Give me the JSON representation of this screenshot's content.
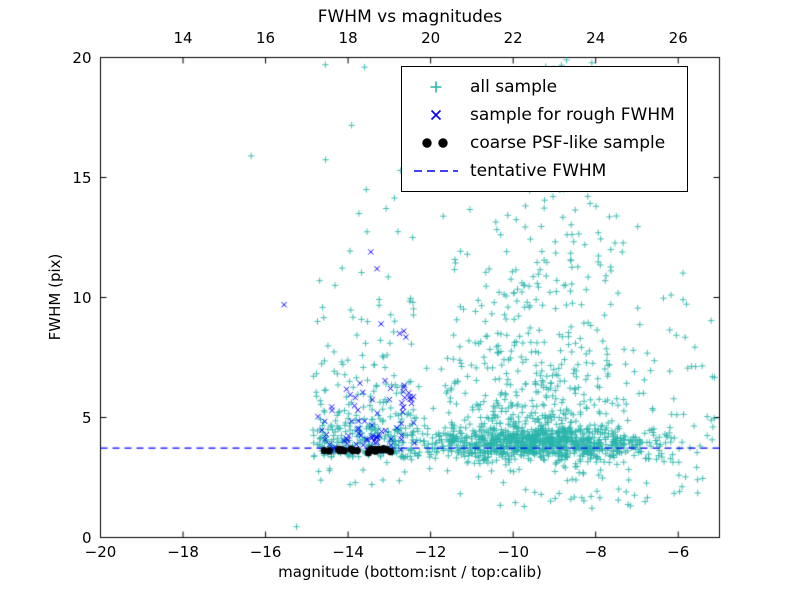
{
  "chart_data": {
    "type": "scatter",
    "title": "FWHM vs magnitudes",
    "xlabel": "magnitude (bottom:isnt / top:calib)",
    "ylabel": "FWHM (pix)",
    "xlim": [
      -20,
      -5
    ],
    "ylim": [
      0,
      20
    ],
    "top_xlim": [
      12,
      27
    ],
    "x_ticks": [
      -20,
      -18,
      -16,
      -14,
      -12,
      -10,
      -8,
      -6
    ],
    "x_tick_labels": [
      "−20",
      "−18",
      "−16",
      "−14",
      "−12",
      "−10",
      "−8",
      "−6"
    ],
    "y_ticks": [
      0,
      5,
      10,
      15,
      20
    ],
    "y_tick_labels": [
      "0",
      "5",
      "10",
      "15",
      "20"
    ],
    "top_ticks": [
      14,
      16,
      18,
      20,
      22,
      24,
      26
    ],
    "top_tick_labels": [
      "14",
      "16",
      "18",
      "20",
      "22",
      "24",
      "26"
    ],
    "grid": false,
    "tentative_fwhm": 3.72,
    "axes_color": "#000000",
    "background": "#ffffff",
    "legend": {
      "position": "upper right",
      "entries": [
        {
          "label": "all sample",
          "marker": "plus",
          "color": "#2ab5ab"
        },
        {
          "label": "sample for rough FWHM",
          "marker": "x",
          "color": "#0000ff"
        },
        {
          "label": "coarse PSF-like sample",
          "marker": "dot",
          "color": "#000000"
        },
        {
          "label": "tentative FWHM",
          "marker": "dashed-line",
          "color": "#0000ff"
        }
      ]
    },
    "series": [
      {
        "name": "all sample",
        "marker": "plus",
        "color": "#2ab5ab",
        "opacity": 0.85,
        "seed": 7,
        "clusters": [
          {
            "count": 250,
            "x": {
              "dist": "uniform",
              "min": -14.85,
              "max": -12.25
            },
            "y": {
              "dist": "expshift",
              "base": 3.35,
              "scale": 0.9,
              "min": 3.3,
              "max": 19.8
            }
          },
          {
            "count": 95,
            "x": {
              "dist": "uniform",
              "min": -14.8,
              "max": -12.3
            },
            "y": {
              "dist": "expshift",
              "base": 4.0,
              "scale": 3.3,
              "min": 4.0,
              "max": 19.8
            }
          },
          {
            "count": 14,
            "x": {
              "dist": "uniform",
              "min": -14.8,
              "max": -12.35
            },
            "y": {
              "dist": "uniform",
              "min": 2.2,
              "max": 3.4
            }
          },
          {
            "count": 900,
            "x": {
              "dist": "normal",
              "mean": -9.4,
              "sd": 1.5,
              "min": -12.2,
              "max": -5.05
            },
            "y": {
              "dist": "normal",
              "mean": 3.9,
              "sd": 0.35,
              "min": 2.7,
              "max": 5.3
            }
          },
          {
            "count": 430,
            "x": {
              "dist": "normal",
              "mean": -9.4,
              "sd": 1.25,
              "min": -12.2,
              "max": -5.05
            },
            "y": {
              "dist": "expshift",
              "base": 4.2,
              "scale": 2.7,
              "min": 4.2,
              "max": 19.9
            }
          },
          {
            "count": 130,
            "x": {
              "dist": "normal",
              "mean": -8.9,
              "sd": 0.85,
              "min": -11.6,
              "max": -6.4
            },
            "y": {
              "dist": "uniform",
              "min": 9.5,
              "max": 19.9
            }
          },
          {
            "count": 60,
            "x": {
              "dist": "normal",
              "mean": -8.3,
              "sd": 1.7,
              "min": -12.0,
              "max": -5.1
            },
            "y": {
              "dist": "uniform",
              "min": 1.2,
              "max": 3.3
            }
          },
          {
            "count": 28,
            "x": {
              "dist": "uniform",
              "min": -6.3,
              "max": -5.05
            },
            "y": {
              "dist": "uniform",
              "min": 2.4,
              "max": 10.5
            }
          }
        ],
        "points": [
          [
            -16.35,
            15.9
          ],
          [
            -14.55,
            19.7
          ],
          [
            -13.6,
            19.6
          ],
          [
            -12.15,
            19.3
          ],
          [
            -11.85,
            19.5
          ],
          [
            -11.15,
            16.5
          ],
          [
            -15.25,
            0.45
          ]
        ]
      },
      {
        "name": "sample for rough FWHM",
        "marker": "x",
        "color": "#0000ff",
        "opacity": 0.95,
        "seed": 11,
        "clusters": [
          {
            "count": 55,
            "x": {
              "dist": "uniform",
              "min": -14.75,
              "max": -12.35
            },
            "y": {
              "dist": "expshift",
              "base": 3.55,
              "scale": 0.7,
              "min": 3.5,
              "max": 7.0
            }
          },
          {
            "count": 16,
            "x": {
              "dist": "uniform",
              "min": -14.4,
              "max": -12.4
            },
            "y": {
              "dist": "uniform",
              "min": 4.3,
              "max": 6.6
            }
          },
          {
            "count": 12,
            "x": {
              "dist": "normal",
              "mean": -12.52,
              "sd": 0.1,
              "min": -12.75,
              "max": -12.3
            },
            "y": {
              "dist": "normal",
              "mean": 5.7,
              "sd": 0.4,
              "min": 4.7,
              "max": 6.4
            }
          }
        ],
        "points": [
          [
            -15.55,
            9.7
          ],
          [
            -13.45,
            11.9
          ],
          [
            -13.3,
            11.2
          ],
          [
            -13.2,
            8.9
          ],
          [
            -12.75,
            8.5
          ],
          [
            -12.65,
            8.6
          ],
          [
            -12.6,
            8.35
          ]
        ]
      },
      {
        "name": "tentative FWHM",
        "type": "hline",
        "y": 3.72,
        "color": "#0000ff",
        "dash": [
          7,
          5
        ]
      },
      {
        "name": "coarse PSF-like sample",
        "marker": "dot",
        "color": "#000000",
        "opacity": 1,
        "seed": 5,
        "clusters": [
          {
            "count": 20,
            "x": {
              "dist": "uniform",
              "min": -14.6,
              "max": -12.85
            },
            "y": {
              "dist": "normal",
              "mean": 3.62,
              "sd": 0.05,
              "min": 3.48,
              "max": 3.76
            }
          }
        ],
        "points": []
      }
    ]
  }
}
